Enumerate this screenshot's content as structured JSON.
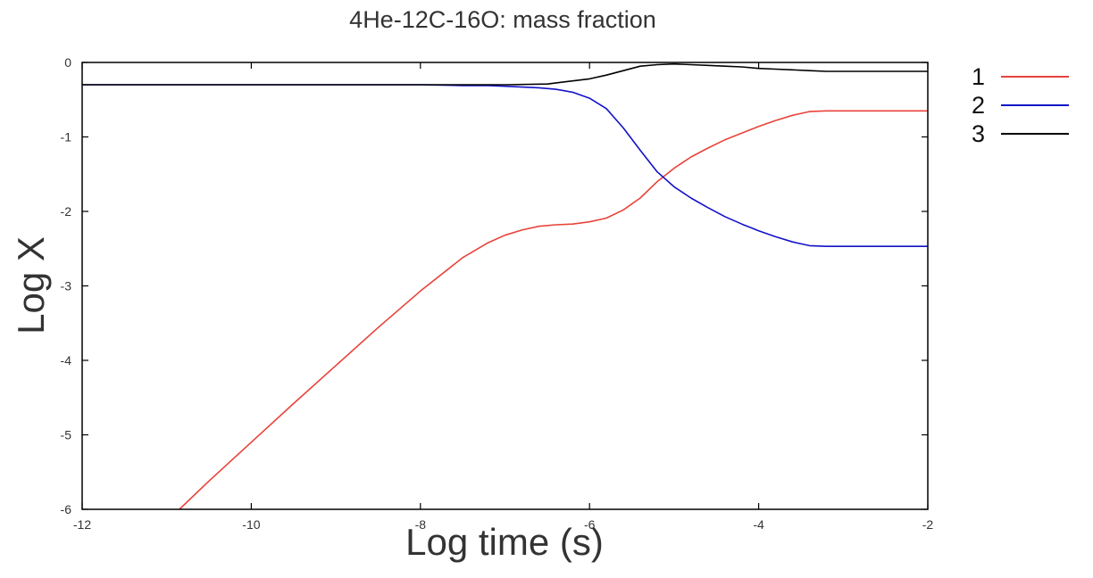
{
  "chart_data": {
    "type": "line",
    "title": "4He-12C-16O: mass fraction",
    "xlabel": "Log time (s)",
    "ylabel": "Log X",
    "xlim": [
      -12,
      -2
    ],
    "ylim": [
      -6,
      0
    ],
    "xticks": [
      "-12",
      "-10",
      "-8",
      "-6",
      "-4",
      "-2"
    ],
    "yticks": [
      "0",
      "-1",
      "-2",
      "-3",
      "-4",
      "-5",
      "-6"
    ],
    "grid": false,
    "legend_position": "right",
    "series": [
      {
        "name": "1",
        "color": "#e8433a",
        "x": [
          -10.85,
          -10.5,
          -10.0,
          -9.5,
          -9.0,
          -8.5,
          -8.0,
          -7.5,
          -7.2,
          -7.0,
          -6.8,
          -6.6,
          -6.4,
          -6.2,
          -6.0,
          -5.8,
          -5.6,
          -5.4,
          -5.2,
          -5.0,
          -4.8,
          -4.6,
          -4.4,
          -4.2,
          -4.0,
          -3.8,
          -3.6,
          -3.4,
          -3.2,
          -3.0,
          -2.0
        ],
        "y": [
          -6.0,
          -5.62,
          -5.1,
          -4.58,
          -4.07,
          -3.56,
          -3.07,
          -2.62,
          -2.42,
          -2.32,
          -2.25,
          -2.2,
          -2.18,
          -2.17,
          -2.14,
          -2.09,
          -1.98,
          -1.82,
          -1.6,
          -1.42,
          -1.27,
          -1.15,
          -1.04,
          -0.95,
          -0.86,
          -0.78,
          -0.71,
          -0.66,
          -0.65,
          -0.65,
          -0.65
        ]
      },
      {
        "name": "2",
        "color": "#1212c8",
        "x": [
          -12,
          -9.0,
          -8.0,
          -7.5,
          -7.2,
          -7.0,
          -6.8,
          -6.6,
          -6.4,
          -6.2,
          -6.0,
          -5.8,
          -5.6,
          -5.4,
          -5.2,
          -5.0,
          -4.8,
          -4.6,
          -4.4,
          -4.2,
          -4.0,
          -3.8,
          -3.6,
          -3.4,
          -3.2,
          -3.0,
          -2.0
        ],
        "y": [
          -0.3,
          -0.3,
          -0.3,
          -0.31,
          -0.31,
          -0.32,
          -0.33,
          -0.34,
          -0.36,
          -0.4,
          -0.48,
          -0.62,
          -0.88,
          -1.18,
          -1.47,
          -1.67,
          -1.82,
          -1.95,
          -2.07,
          -2.17,
          -2.26,
          -2.34,
          -2.41,
          -2.46,
          -2.47,
          -2.47,
          -2.47
        ]
      },
      {
        "name": "3",
        "color": "#000000",
        "x": [
          -12,
          -9.0,
          -8.0,
          -7.5,
          -7.0,
          -6.5,
          -6.0,
          -5.8,
          -5.6,
          -5.4,
          -5.2,
          -5.0,
          -4.8,
          -4.6,
          -4.4,
          -4.2,
          -4.0,
          -3.8,
          -3.6,
          -3.4,
          -3.2,
          -3.0,
          -2.0
        ],
        "y": [
          -0.3,
          -0.3,
          -0.3,
          -0.3,
          -0.3,
          -0.29,
          -0.22,
          -0.17,
          -0.11,
          -0.05,
          -0.03,
          -0.02,
          -0.03,
          -0.04,
          -0.05,
          -0.06,
          -0.08,
          -0.09,
          -0.1,
          -0.11,
          -0.12,
          -0.12,
          -0.12
        ]
      }
    ]
  }
}
